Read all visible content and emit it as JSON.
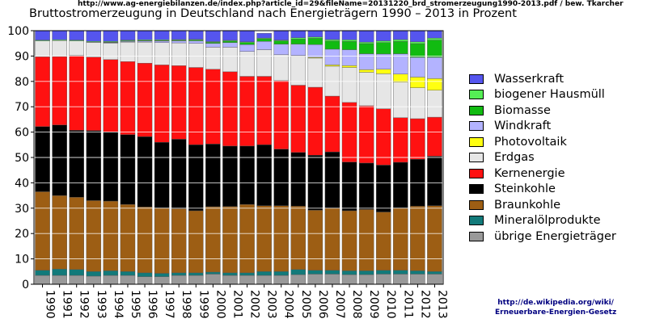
{
  "header": {
    "source_url": "http://www.ag-energiebilanzen.de/index.php?article_id=29&fileName=20131220_brd_stromerzeugung1990-2013.pdf / bew. Tkarcher"
  },
  "footer": {
    "link_line1": "http://de.wikipedia.org/wiki/",
    "link_line2": "Erneuerbare-Energien-Gesetz"
  },
  "colors": {
    "Wasserkraft": "#5555ee",
    "biogener Hausmüll": "#55ee55",
    "Biomasse": "#11bb11",
    "Windkraft": "#b3b3ff",
    "Photovoltaik": "#ffff11",
    "Erdgas": "#e6e6e6",
    "Kernenergie": "#ff1111",
    "Steinkohle": "#000000",
    "Braunkohle": "#9d5e14",
    "Mineralölprodukte": "#127a7a",
    "übrige Energieträger": "#999999"
  },
  "chart_data": {
    "type": "bar",
    "stacked": true,
    "title": "Bruttostromerzeugung in Deutschland nach Energieträgern 1990 – 2013 in Prozent",
    "xlabel": "",
    "ylabel": "",
    "ylim": [
      0,
      100
    ],
    "yticks": [
      0,
      10,
      20,
      30,
      40,
      50,
      60,
      70,
      80,
      90,
      100
    ],
    "grid": true,
    "legend_position": "right",
    "categories": [
      "1990",
      "1991",
      "1992",
      "1993",
      "1994",
      "1995",
      "1996",
      "1997",
      "1998",
      "1999",
      "2000",
      "2001",
      "2002",
      "2003",
      "2004",
      "2005",
      "2006",
      "2007",
      "2008",
      "2009",
      "2010",
      "2011",
      "2012",
      "2013"
    ],
    "series": [
      {
        "name": "übrige Energieträger",
        "values": [
          3.5,
          3.5,
          3.5,
          3.2,
          3.5,
          3.5,
          3.0,
          3.0,
          3.5,
          3.5,
          4.0,
          3.5,
          3.5,
          3.5,
          3.5,
          3.8,
          4.0,
          4.0,
          3.8,
          3.8,
          4.0,
          4.0,
          4.0,
          4.0
        ]
      },
      {
        "name": "Mineralölprodukte",
        "values": [
          2.0,
          2.5,
          2.3,
          1.8,
          1.8,
          1.5,
          1.5,
          1.3,
          1.0,
          1.0,
          0.8,
          1.0,
          1.0,
          1.5,
          1.5,
          2.0,
          1.5,
          1.5,
          1.5,
          1.5,
          1.5,
          1.5,
          1.3,
          1.0
        ]
      },
      {
        "name": "Braunkohle",
        "values": [
          31.0,
          29.0,
          28.5,
          28.0,
          27.5,
          26.5,
          26.0,
          25.8,
          25.3,
          24.5,
          25.8,
          26.2,
          27.0,
          26.0,
          26.0,
          25.0,
          23.7,
          24.5,
          23.7,
          24.2,
          23.0,
          24.6,
          25.5,
          26.0
        ]
      },
      {
        "name": "Steinkohle",
        "values": [
          25.7,
          27.8,
          26.4,
          27.6,
          27.3,
          27.5,
          27.7,
          25.9,
          27.4,
          26.0,
          24.7,
          23.8,
          23.0,
          24.0,
          22.3,
          21.2,
          21.7,
          22.2,
          19.2,
          18.3,
          18.5,
          18.0,
          18.5,
          19.5
        ]
      },
      {
        "name": "Kernenergie",
        "values": [
          27.5,
          27.0,
          29.5,
          29.0,
          28.5,
          28.8,
          29.0,
          30.5,
          29.0,
          30.5,
          29.5,
          29.3,
          27.5,
          27.0,
          27.0,
          26.5,
          26.8,
          22.0,
          23.5,
          22.6,
          22.2,
          17.6,
          16.0,
          15.4
        ]
      },
      {
        "name": "Erdgas",
        "values": [
          6.3,
          6.3,
          5.8,
          5.8,
          6.5,
          7.7,
          8.3,
          8.8,
          9.0,
          9.5,
          8.7,
          9.7,
          9.8,
          10.5,
          10.2,
          11.5,
          11.5,
          11.8,
          13.8,
          13.2,
          13.8,
          14.0,
          12.2,
          10.6
        ]
      },
      {
        "name": "Photovoltaik",
        "values": [
          0,
          0,
          0,
          0,
          0,
          0,
          0,
          0,
          0,
          0,
          0,
          0,
          0,
          0,
          0,
          0.2,
          0.3,
          0.5,
          0.7,
          1.0,
          1.8,
          3.2,
          4.2,
          4.6
        ]
      },
      {
        "name": "Windkraft",
        "values": [
          0,
          0,
          0,
          0.1,
          0.2,
          0.3,
          0.4,
          0.6,
          0.8,
          1.0,
          1.5,
          1.8,
          2.7,
          3.3,
          4.2,
          4.5,
          5.0,
          6.2,
          6.3,
          6.3,
          6.0,
          8.0,
          7.8,
          8.4
        ]
      },
      {
        "name": "Biomasse",
        "values": [
          0,
          0,
          0,
          0,
          0.2,
          0.2,
          0.2,
          0.2,
          0.2,
          0.3,
          0.4,
          0.6,
          0.8,
          1.0,
          1.3,
          2.0,
          2.5,
          3.2,
          3.3,
          4.0,
          4.5,
          4.9,
          5.4,
          6.8
        ]
      },
      {
        "name": "biogener Hausmüll",
        "values": [
          0.3,
          0.3,
          0.3,
          0.3,
          0.3,
          0.3,
          0.3,
          0.3,
          0.3,
          0.3,
          0.3,
          0.3,
          0.3,
          0.3,
          0.3,
          0.5,
          0.5,
          0.6,
          0.6,
          0.6,
          0.7,
          0.7,
          0.7,
          0.8
        ]
      },
      {
        "name": "Wasserkraft",
        "values": [
          3.7,
          3.6,
          3.7,
          4.2,
          4.2,
          3.7,
          3.6,
          3.6,
          3.5,
          3.4,
          4.3,
          3.8,
          4.4,
          1.9,
          3.7,
          2.8,
          2.5,
          3.5,
          3.6,
          4.5,
          4.0,
          3.5,
          4.4,
          2.9
        ]
      }
    ],
    "legend_order": [
      "Wasserkraft",
      "biogener Hausmüll",
      "Biomasse",
      "Windkraft",
      "Photovoltaik",
      "Erdgas",
      "Kernenergie",
      "Steinkohle",
      "Braunkohle",
      "Mineralölprodukte",
      "übrige Energieträger"
    ]
  }
}
